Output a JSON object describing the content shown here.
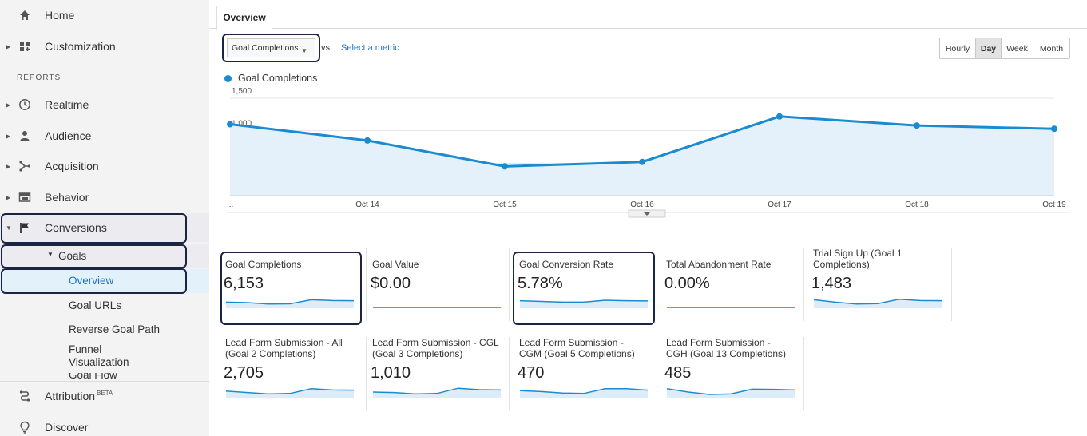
{
  "sidebar": {
    "items": [
      {
        "label": "Home",
        "icon": "home-icon"
      },
      {
        "label": "Customization",
        "icon": "dashboard-icon"
      }
    ],
    "reports_heading": "REPORTS",
    "report_items": [
      {
        "label": "Realtime",
        "icon": "clock-icon"
      },
      {
        "label": "Audience",
        "icon": "person-icon"
      },
      {
        "label": "Acquisition",
        "icon": "acquisition-icon"
      },
      {
        "label": "Behavior",
        "icon": "behavior-icon"
      },
      {
        "label": "Conversions",
        "icon": "flag-icon"
      }
    ],
    "goals_label": "Goals",
    "goals_subitems": [
      "Overview",
      "Goal URLs",
      "Reverse Goal Path",
      "Funnel Visualization",
      "Goal Flow"
    ],
    "attribution_label": "Attribution",
    "attribution_badge": "BETA",
    "discover_label": "Discover"
  },
  "tabs": {
    "overview": "Overview"
  },
  "toolbar": {
    "metric": "Goal Completions",
    "vs": "vs.",
    "select_metric": "Select a metric",
    "periods": [
      "Hourly",
      "Day",
      "Week",
      "Month"
    ],
    "active_period": "Day"
  },
  "legend": {
    "series_label": "Goal Completions"
  },
  "chart_data": {
    "type": "area",
    "x": [
      "...",
      "Oct 14",
      "Oct 15",
      "Oct 16",
      "Oct 17",
      "Oct 18",
      "Oct 19"
    ],
    "series": [
      {
        "name": "Goal Completions",
        "values": [
          1100,
          850,
          450,
          520,
          1220,
          1080,
          1030
        ]
      }
    ],
    "y_ticks": [
      "500",
      "1,000",
      "1,500"
    ],
    "ylim": [
      0,
      1500
    ],
    "grid": true,
    "legend": "top-left",
    "color": "#1a8bd0",
    "fill": "#e4f1fb"
  },
  "scorecards": [
    {
      "title": "Goal Completions",
      "value": "6,153",
      "spark": [
        0.55,
        0.5,
        0.35,
        0.38,
        0.8,
        0.72,
        0.7
      ]
    },
    {
      "title": "Goal Value",
      "value": "$0.00",
      "spark": [
        0,
        0,
        0,
        0,
        0,
        0,
        0
      ]
    },
    {
      "title": "Goal Conversion Rate",
      "value": "5.78%",
      "spark": [
        0.7,
        0.62,
        0.55,
        0.55,
        0.75,
        0.7,
        0.68
      ]
    },
    {
      "title": "Total Abandonment Rate",
      "value": "0.00%",
      "spark": [
        0,
        0,
        0,
        0,
        0,
        0,
        0
      ]
    },
    {
      "title": "Trial Sign Up (Goal 1 Completions)",
      "value": "1,483",
      "spark": [
        0.8,
        0.55,
        0.35,
        0.4,
        0.85,
        0.72,
        0.7
      ]
    },
    {
      "title": "Lead Form Submission - All (Goal 2 Completions)",
      "value": "2,705",
      "spark": [
        0.6,
        0.45,
        0.3,
        0.35,
        0.85,
        0.72,
        0.7
      ]
    },
    {
      "title": "Lead Form Submission - CGL (Goal 3 Completions)",
      "value": "1,010",
      "spark": [
        0.5,
        0.45,
        0.3,
        0.35,
        0.9,
        0.75,
        0.72
      ]
    },
    {
      "title": "Lead Form Submission - CGM (Goal 5 Completions)",
      "value": "470",
      "spark": [
        0.65,
        0.55,
        0.4,
        0.35,
        0.85,
        0.85,
        0.7
      ]
    },
    {
      "title": "Lead Form Submission - CGH (Goal 13 Completions)",
      "value": "485",
      "spark": [
        0.85,
        0.5,
        0.25,
        0.3,
        0.8,
        0.78,
        0.72
      ]
    }
  ]
}
